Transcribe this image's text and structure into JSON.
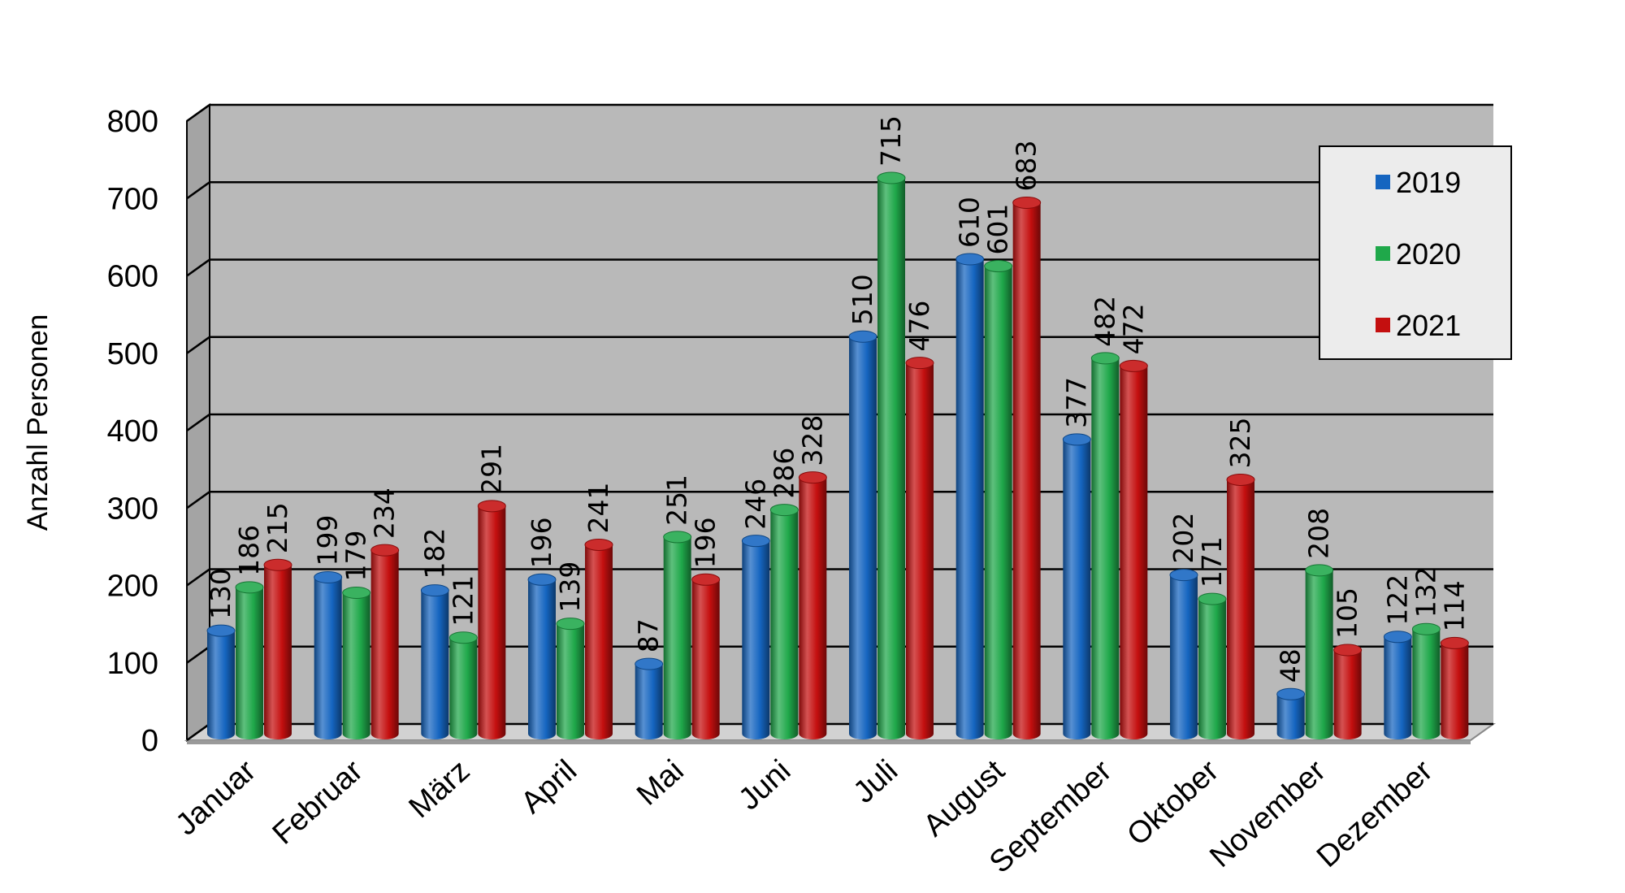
{
  "chart_data": {
    "type": "bar",
    "title": "",
    "xlabel": "",
    "ylabel": "Anzahl Personen",
    "ylim": [
      0,
      800
    ],
    "yticks": [
      "0",
      "100",
      "200",
      "300",
      "400",
      "500",
      "600",
      "700",
      "800"
    ],
    "grid": true,
    "legend_position": "top-right",
    "categories": [
      "Januar",
      "Februar",
      "März",
      "April",
      "Mai",
      "Juni",
      "Juli",
      "August",
      "September",
      "Oktober",
      "November",
      "Dezember"
    ],
    "series": [
      {
        "name": "2019",
        "color": "#1565C0",
        "values": [
          130,
          199,
          182,
          196,
          87,
          246,
          510,
          610,
          377,
          202,
          48,
          122
        ]
      },
      {
        "name": "2020",
        "color": "#1FA84A",
        "values": [
          186,
          179,
          121,
          139,
          251,
          286,
          715,
          601,
          482,
          171,
          208,
          132
        ]
      },
      {
        "name": "2021",
        "color": "#C40F0F",
        "values": [
          215,
          234,
          291,
          241,
          196,
          328,
          476,
          683,
          472,
          325,
          105,
          114
        ]
      }
    ]
  }
}
